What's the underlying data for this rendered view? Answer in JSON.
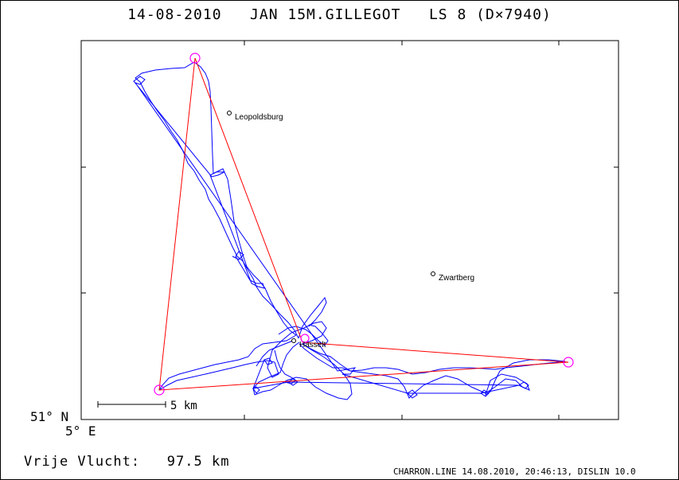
{
  "title": "14-08-2010   JAN 15M.GILLEGOT   LS 8 (D×7940)",
  "axes": {
    "lat_label": "51° N",
    "lon_label": "5° E"
  },
  "places": [
    {
      "name": "Leopoldsburg"
    },
    {
      "name": "Zwartberg"
    },
    {
      "name": "Hasselt"
    }
  ],
  "scale": {
    "label": "5 km"
  },
  "footer": {
    "label": "Vrije Vlucht:",
    "value": "97.5 km"
  },
  "credit": "CHARRON.LINE 14.08.2010, 20:46:13, DISLIN 10.0",
  "colors": {
    "track": "#0000ff",
    "task": "#ff0000",
    "turnpoint": "#ff00ff"
  }
}
